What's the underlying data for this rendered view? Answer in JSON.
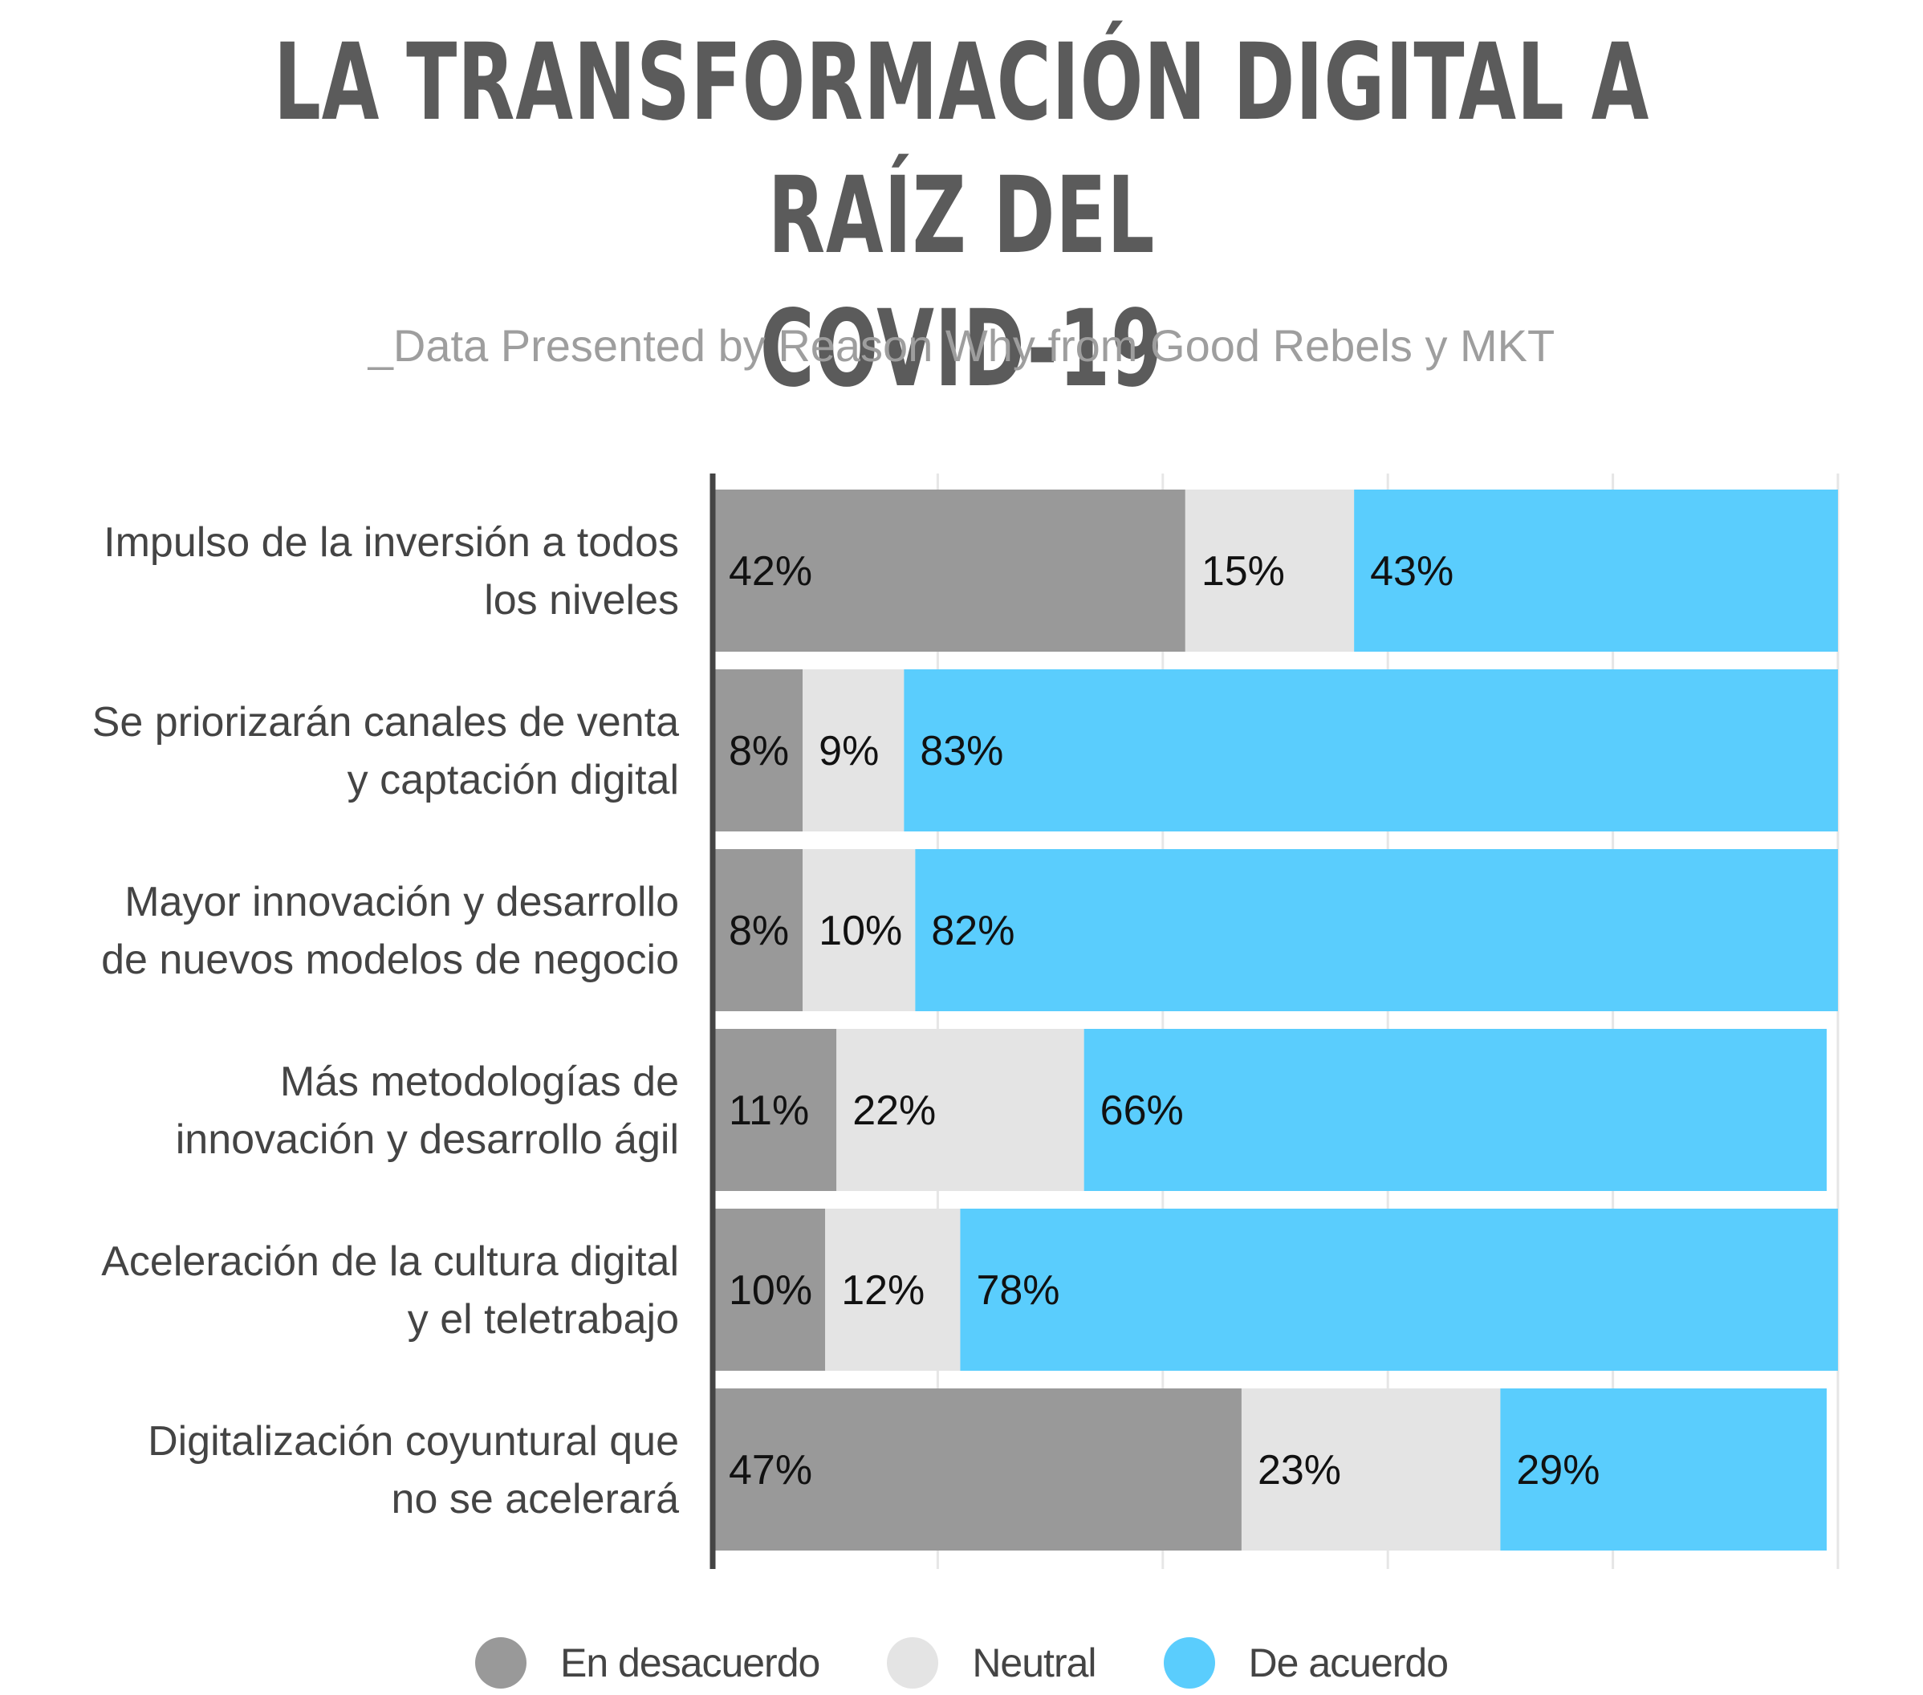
{
  "title_lines": [
    "LA TRANSFORMACIÓN DIGITAL A RAÍZ DEL",
    "COVID-19"
  ],
  "subtitle": "_Data Presented by Reason Why from Good Rebels y MKT",
  "colors": {
    "en_desacuerdo": "#999999",
    "neutral": "#e4e4e4",
    "de_acuerdo": "#5acdfd",
    "axis": "#444444",
    "grid": "#e6e6e6",
    "category_text": "#444444",
    "value_text": "#111111"
  },
  "chart_data": {
    "type": "bar",
    "orientation": "horizontal",
    "stacked": true,
    "xlim": [
      0,
      100
    ],
    "grid": true,
    "legend_position": "bottom",
    "categories": [
      [
        "Impulso de la inversión a todos",
        "los niveles"
      ],
      [
        "Se priorizarán canales de venta",
        "y captación digital"
      ],
      [
        "Mayor innovación y desarrollo",
        "de nuevos modelos de negocio"
      ],
      [
        "Más metodologías de",
        "innovación y desarrollo ágil"
      ],
      [
        "Aceleración de la cultura digital",
        "y el teletrabajo"
      ],
      [
        "Digitalización coyuntural que",
        "no se acelerará"
      ]
    ],
    "series": [
      {
        "name": "En desacuerdo",
        "color_key": "en_desacuerdo",
        "values": [
          42,
          8,
          8,
          11,
          10,
          47
        ],
        "labels": [
          "42%",
          "8%",
          "8%",
          "11%",
          "10%",
          "47%"
        ]
      },
      {
        "name": "Neutral",
        "color_key": "neutral",
        "values": [
          15,
          9,
          10,
          22,
          12,
          23
        ],
        "labels": [
          "15%",
          "9%",
          "10%",
          "22%",
          "12%",
          "23%"
        ]
      },
      {
        "name": "De acuerdo",
        "color_key": "de_acuerdo",
        "values": [
          43,
          83,
          82,
          66,
          78,
          29
        ],
        "labels": [
          "43%",
          "83%",
          "82%",
          "66%",
          "78%",
          "29%"
        ]
      }
    ]
  }
}
